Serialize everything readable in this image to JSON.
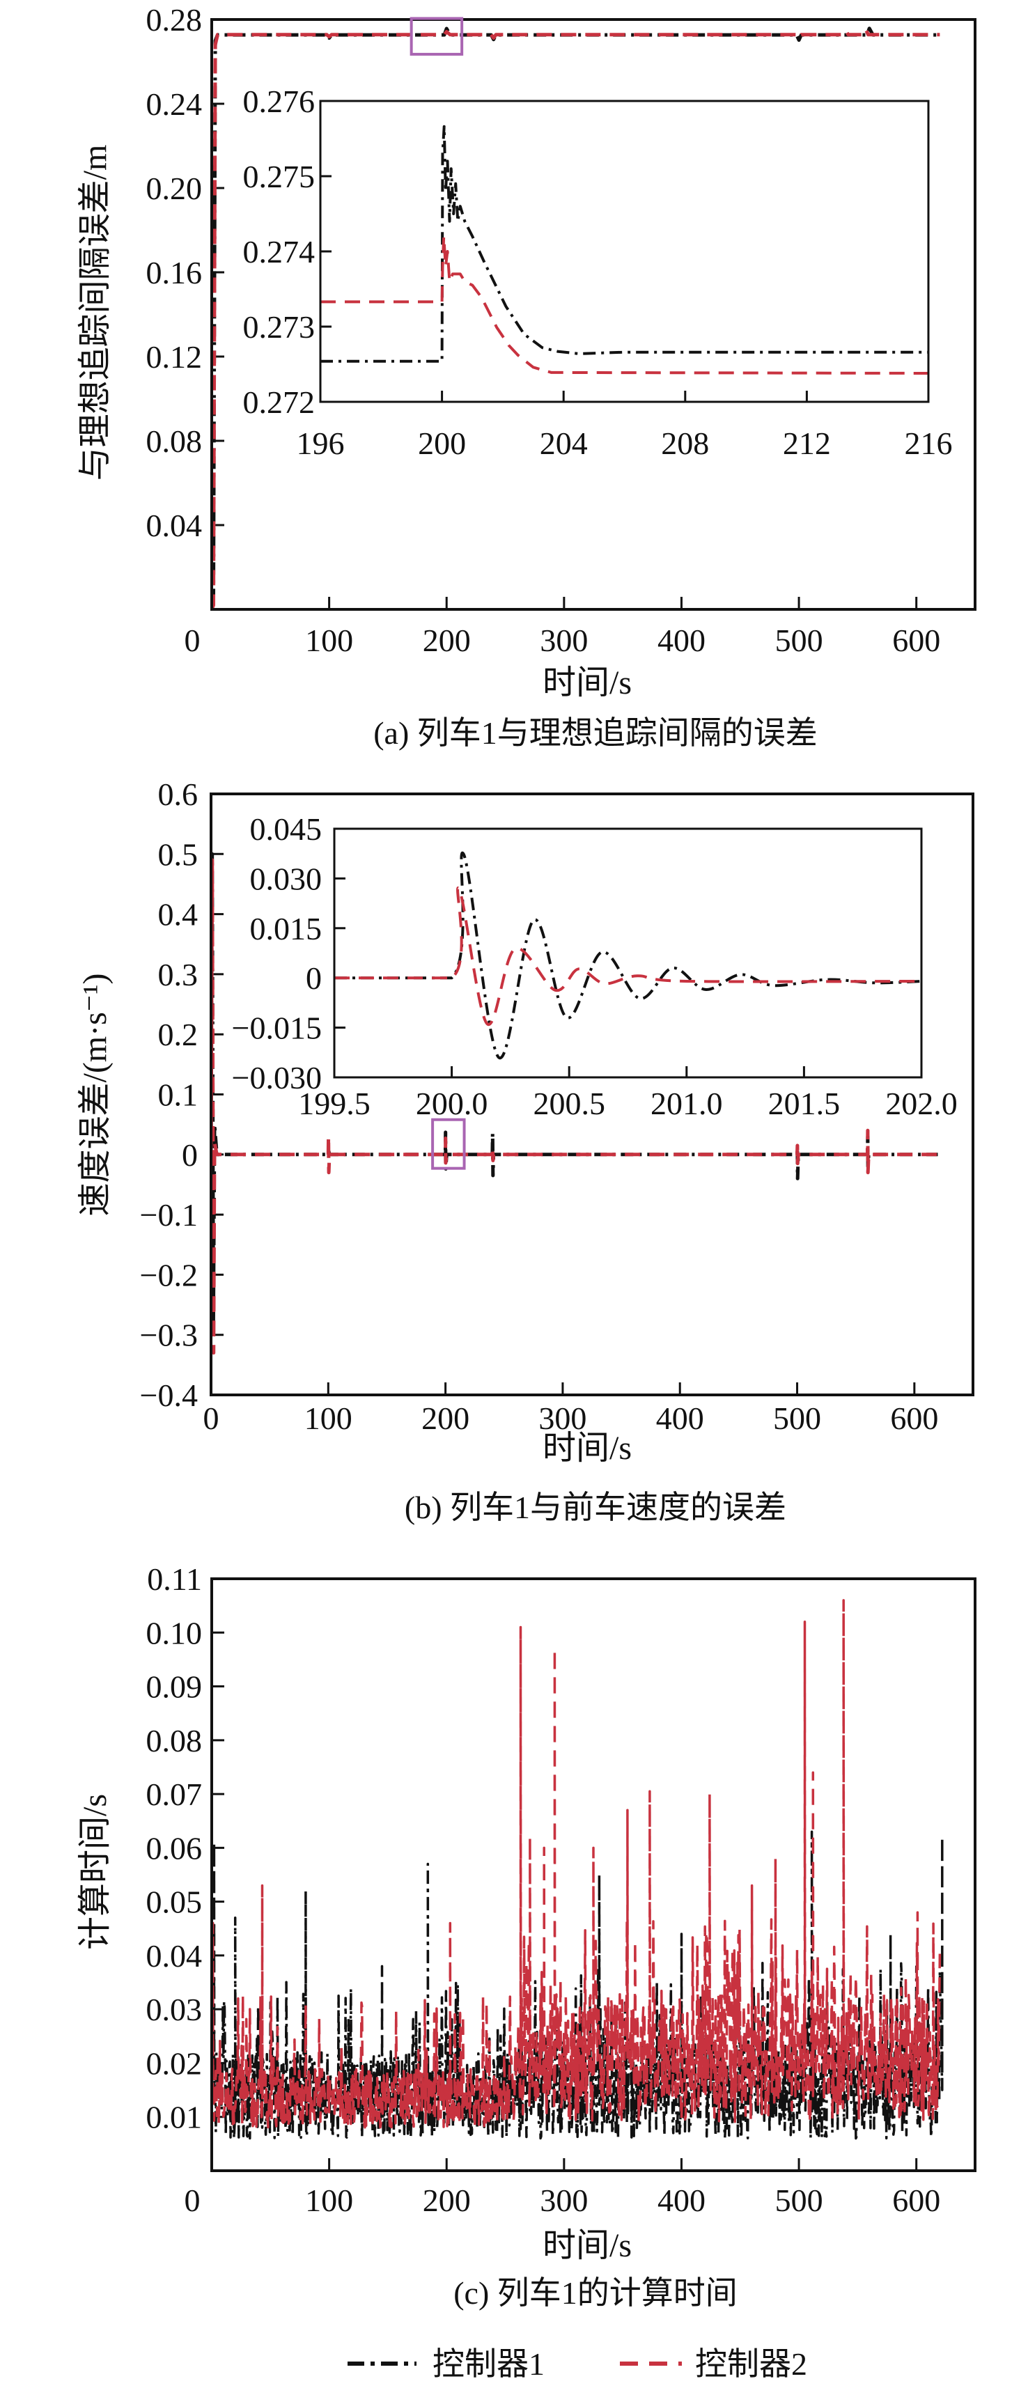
{
  "colors": {
    "controller1": "#111111",
    "controller2": "#c8323f",
    "highlight": "#a965b2",
    "axis": "#111111"
  },
  "legend": [
    {
      "label": "控制器1",
      "style": "dash-dot",
      "color": "#111111"
    },
    {
      "label": "控制器2",
      "style": "dashed",
      "color": "#c8323f"
    }
  ],
  "chart_data": [
    {
      "id": "a",
      "type": "line",
      "title": "(a) 列车1与理想追踪间隔的误差",
      "xlabel": "时间/s",
      "ylabel": "与理想追踪间隔误差/m",
      "xlim": [
        0,
        650
      ],
      "ylim": [
        0,
        0.28
      ],
      "xticks": [
        0,
        100,
        200,
        300,
        400,
        500,
        600
      ],
      "xticklabels": [
        "0",
        "100",
        "200",
        "300",
        "400",
        "500",
        "600"
      ],
      "yticks": [
        0.04,
        0.08,
        0.12,
        0.16,
        0.2,
        0.24,
        0.28
      ],
      "yticklabels": [
        "0.04",
        "0.08",
        "0.12",
        "0.16",
        "0.20",
        "0.24",
        "0.28"
      ],
      "highlight": {
        "x": [
          170,
          213
        ],
        "y": [
          0.2635,
          0.2805
        ]
      },
      "series": [
        {
          "name": "控制器1",
          "points": [
            [
              0,
              0.004
            ],
            [
              1.5,
              0.006
            ],
            [
              3,
              0.27
            ],
            [
              5,
              0.2727
            ],
            [
              98,
              0.2727
            ],
            [
              100,
              0.2712
            ],
            [
              102,
              0.2727
            ],
            [
              198,
              0.2727
            ],
            [
              200,
              0.2757
            ],
            [
              203,
              0.2727
            ],
            [
              238,
              0.2727
            ],
            [
              240,
              0.2705
            ],
            [
              242,
              0.2727
            ],
            [
              498,
              0.2727
            ],
            [
              500,
              0.2702
            ],
            [
              502,
              0.2727
            ],
            [
              558,
              0.2727
            ],
            [
              560,
              0.2758
            ],
            [
              563,
              0.2727
            ],
            [
              620,
              0.2727
            ]
          ]
        },
        {
          "name": "控制器2",
          "points": [
            [
              0,
              0.0
            ],
            [
              1.5,
              0.002
            ],
            [
              3,
              0.268
            ],
            [
              5,
              0.2728
            ],
            [
              98,
              0.2728
            ],
            [
              100,
              0.2718
            ],
            [
              102,
              0.2728
            ],
            [
              198,
              0.2728
            ],
            [
              200,
              0.2742
            ],
            [
              203,
              0.2728
            ],
            [
              238,
              0.2728
            ],
            [
              240,
              0.2712
            ],
            [
              242,
              0.2728
            ],
            [
              498,
              0.2728
            ],
            [
              500,
              0.2712
            ],
            [
              502,
              0.2728
            ],
            [
              538,
              0.2728
            ],
            [
              540,
              0.2745
            ],
            [
              542,
              0.2728
            ],
            [
              555,
              0.2728
            ],
            [
              557,
              0.2752
            ],
            [
              559,
              0.2728
            ],
            [
              620,
              0.2728
            ]
          ]
        }
      ],
      "inset": {
        "xlim": [
          196,
          216
        ],
        "ylim": [
          0.272,
          0.276
        ],
        "xticks": [
          196,
          200,
          204,
          208,
          212,
          216
        ],
        "xticklabels": [
          "196",
          "200",
          "204",
          "208",
          "212",
          "216"
        ],
        "yticks": [
          0.272,
          0.273,
          0.274,
          0.275,
          0.276
        ],
        "yticklabels": [
          "0.272",
          "0.273",
          "0.274",
          "0.275",
          "0.276"
        ],
        "series": [
          {
            "name": "控制器1",
            "points": [
              [
                196,
                0.27254
              ],
              [
                200,
                0.27254
              ],
              [
                200.02,
                0.2753
              ],
              [
                200.07,
                0.27566
              ],
              [
                200.12,
                0.2748
              ],
              [
                200.18,
                0.2752
              ],
              [
                200.25,
                0.2744
              ],
              [
                200.3,
                0.2751
              ],
              [
                200.38,
                0.2745
              ],
              [
                200.45,
                0.2749
              ],
              [
                200.52,
                0.2744
              ],
              [
                200.6,
                0.2746
              ],
              [
                200.75,
                0.2744
              ],
              [
                201.0,
                0.2742
              ],
              [
                201.4,
                0.27385
              ],
              [
                201.8,
                0.27352
              ],
              [
                202.1,
                0.27327
              ],
              [
                202.7,
                0.2729
              ],
              [
                203.3,
                0.27272
              ],
              [
                203.8,
                0.27267
              ],
              [
                204.5,
                0.27264
              ],
              [
                206,
                0.27266
              ],
              [
                216,
                0.27266
              ]
            ]
          },
          {
            "name": "控制器2",
            "points": [
              [
                196,
                0.27333
              ],
              [
                200,
                0.27333
              ],
              [
                200.02,
                0.2738
              ],
              [
                200.06,
                0.2742
              ],
              [
                200.12,
                0.2738
              ],
              [
                200.18,
                0.274
              ],
              [
                200.25,
                0.2736
              ],
              [
                200.35,
                0.2737
              ],
              [
                200.6,
                0.2737
              ],
              [
                200.75,
                0.2736
              ],
              [
                201.0,
                0.27355
              ],
              [
                201.3,
                0.27339
              ],
              [
                201.8,
                0.27299
              ],
              [
                202.2,
                0.27275
              ],
              [
                202.5,
                0.27262
              ],
              [
                203.0,
                0.27246
              ],
              [
                203.6,
                0.27239
              ],
              [
                216,
                0.27238
              ]
            ]
          }
        ]
      }
    },
    {
      "id": "b",
      "type": "line",
      "title": "(b) 列车1与前车速度的误差",
      "xlabel": "时间/s",
      "ylabel": "速度误差/(m·s⁻¹)",
      "xlim": [
        0,
        650
      ],
      "ylim": [
        -0.4,
        0.6
      ],
      "xticks": [
        0,
        100,
        200,
        300,
        400,
        500,
        600
      ],
      "xticklabels": [
        "0",
        "100",
        "200",
        "300",
        "400",
        "500",
        "600"
      ],
      "yticks": [
        -0.4,
        -0.3,
        -0.2,
        -0.1,
        0,
        0.1,
        0.2,
        0.3,
        0.4,
        0.5,
        0.6
      ],
      "yticklabels": [
        "−0.4",
        "−0.3",
        "−0.2",
        "−0.1",
        "0",
        "0.1",
        "0.2",
        "0.3",
        "0.4",
        "0.5",
        "0.6"
      ],
      "highlight": {
        "x": [
          189,
          216
        ],
        "y": [
          -0.023,
          0.058
        ]
      },
      "series": [
        {
          "name": "控制器1",
          "points": [
            [
              0,
              0
            ],
            [
              1,
              0.5
            ],
            [
              2,
              -0.28
            ],
            [
              3,
              0.05
            ],
            [
              5,
              0
            ],
            [
              100,
              0
            ],
            [
              100.5,
              0.005
            ],
            [
              101,
              0
            ],
            [
              199.9,
              0
            ],
            [
              200.05,
              0.037
            ],
            [
              200.2,
              -0.024
            ],
            [
              201,
              0
            ],
            [
              240,
              0
            ],
            [
              240.2,
              0.035
            ],
            [
              240.5,
              -0.035
            ],
            [
              241,
              0
            ],
            [
              500,
              0
            ],
            [
              500.2,
              0.01
            ],
            [
              500.4,
              -0.04
            ],
            [
              501,
              0
            ],
            [
              560,
              0
            ],
            [
              560.2,
              0.03
            ],
            [
              560.4,
              -0.02
            ],
            [
              561,
              0
            ],
            [
              620,
              0
            ]
          ]
        },
        {
          "name": "控制器2",
          "points": [
            [
              0,
              0
            ],
            [
              1,
              0.49
            ],
            [
              2.2,
              -0.33
            ],
            [
              3,
              0.02
            ],
            [
              5,
              0
            ],
            [
              100,
              0
            ],
            [
              100.2,
              0.03
            ],
            [
              100.5,
              -0.03
            ],
            [
              101,
              0
            ],
            [
              200,
              0
            ],
            [
              200.03,
              0.027
            ],
            [
              200.15,
              -0.014
            ],
            [
              201,
              0
            ],
            [
              240,
              0
            ],
            [
              240.2,
              0.01
            ],
            [
              240.5,
              -0.01
            ],
            [
              241,
              0
            ],
            [
              500,
              0
            ],
            [
              500.2,
              0.015
            ],
            [
              500.4,
              -0.015
            ],
            [
              501,
              0
            ],
            [
              560,
              0
            ],
            [
              560.2,
              0.04
            ],
            [
              560.4,
              -0.03
            ],
            [
              561,
              0
            ],
            [
              620,
              0
            ]
          ]
        }
      ],
      "inset": {
        "xlim": [
          199.5,
          202.0
        ],
        "ylim": [
          -0.03,
          0.045
        ],
        "xticks": [
          199.5,
          200.0,
          200.5,
          201.0,
          201.5,
          202.0
        ],
        "xticklabels": [
          "199.5",
          "200.0",
          "200.5",
          "201.0",
          "201.5",
          "202.0"
        ],
        "yticks": [
          -0.03,
          -0.015,
          0,
          0.015,
          0.03,
          0.045
        ],
        "yticklabels": [
          "−0.030",
          "−0.015",
          "0",
          "0.015",
          "0.030",
          "0.045"
        ],
        "series": [
          {
            "name": "控制器1",
            "points": [
              [
                199.5,
                0
              ],
              [
                200.0,
                0
              ],
              [
                200.05,
                0.0374
              ],
              [
                200.2,
                -0.024
              ],
              [
                200.35,
                0.0175
              ],
              [
                200.49,
                -0.012
              ],
              [
                200.64,
                0.0078
              ],
              [
                200.8,
                -0.0062
              ],
              [
                200.94,
                0.003
              ],
              [
                201.08,
                -0.0035
              ],
              [
                201.23,
                0.001
              ],
              [
                201.37,
                -0.0023
              ],
              [
                201.6,
                -0.0005
              ],
              [
                201.8,
                -0.0015
              ],
              [
                202.0,
                -0.001
              ]
            ]
          },
          {
            "name": "控制器2",
            "points": [
              [
                199.5,
                0
              ],
              [
                200.0,
                0
              ],
              [
                200.03,
                0.027
              ],
              [
                200.15,
                -0.0138
              ],
              [
                200.27,
                0.0088
              ],
              [
                200.44,
                -0.0037
              ],
              [
                200.54,
                0.0027
              ],
              [
                200.65,
                -0.0017
              ],
              [
                200.79,
                0.0006
              ],
              [
                201.0,
                -0.001
              ],
              [
                202.0,
                -0.001
              ]
            ]
          }
        ]
      }
    },
    {
      "id": "c",
      "type": "line",
      "title": "(c) 列车1的计算时间",
      "xlabel": "时间/s",
      "ylabel": "计算时间/s",
      "xlim": [
        0,
        650
      ],
      "ylim": [
        0,
        0.11
      ],
      "xticks": [
        0,
        100,
        200,
        300,
        400,
        500,
        600
      ],
      "xticklabels": [
        "0",
        "100",
        "200",
        "300",
        "400",
        "500",
        "600"
      ],
      "yticks": [
        0.01,
        0.02,
        0.03,
        0.04,
        0.05,
        0.06,
        0.07,
        0.08,
        0.09,
        0.1,
        0.11
      ],
      "yticklabels": [
        "0.01",
        "0.02",
        "0.03",
        "0.04",
        "0.05",
        "0.06",
        "0.07",
        "0.08",
        "0.09",
        "0.10",
        "0.11"
      ],
      "x_range": [
        2,
        620
      ],
      "series": [
        {
          "name": "控制器1",
          "band_before_260": [
            0.006,
            0.022
          ],
          "band_after_260": [
            0.006,
            0.025
          ],
          "peaks": [
            [
              2,
              0.061
            ],
            [
              20,
              0.047
            ],
            [
              80,
              0.052
            ],
            [
              145,
              0.038
            ],
            [
              184,
              0.057
            ],
            [
              330,
              0.055
            ],
            [
              400,
              0.044
            ],
            [
              511,
              0.063
            ],
            [
              578,
              0.044
            ],
            [
              622,
              0.062
            ]
          ]
        },
        {
          "name": "控制器2",
          "band_before_260": [
            0.008,
            0.019
          ],
          "band_after_260": [
            0.009,
            0.033
          ],
          "peaks": [
            [
              1,
              0.046
            ],
            [
              43,
              0.053
            ],
            [
              203,
              0.046
            ],
            [
              263,
              0.101
            ],
            [
              271,
              0.062
            ],
            [
              283,
              0.06
            ],
            [
              292,
              0.097
            ],
            [
              325,
              0.06
            ],
            [
              354,
              0.067
            ],
            [
              373,
              0.0705
            ],
            [
              424,
              0.07
            ],
            [
              460,
              0.053
            ],
            [
              480,
              0.058
            ],
            [
              505,
              0.102
            ],
            [
              512,
              0.074
            ],
            [
              538,
              0.106
            ],
            [
              601,
              0.048
            ]
          ]
        }
      ]
    }
  ]
}
